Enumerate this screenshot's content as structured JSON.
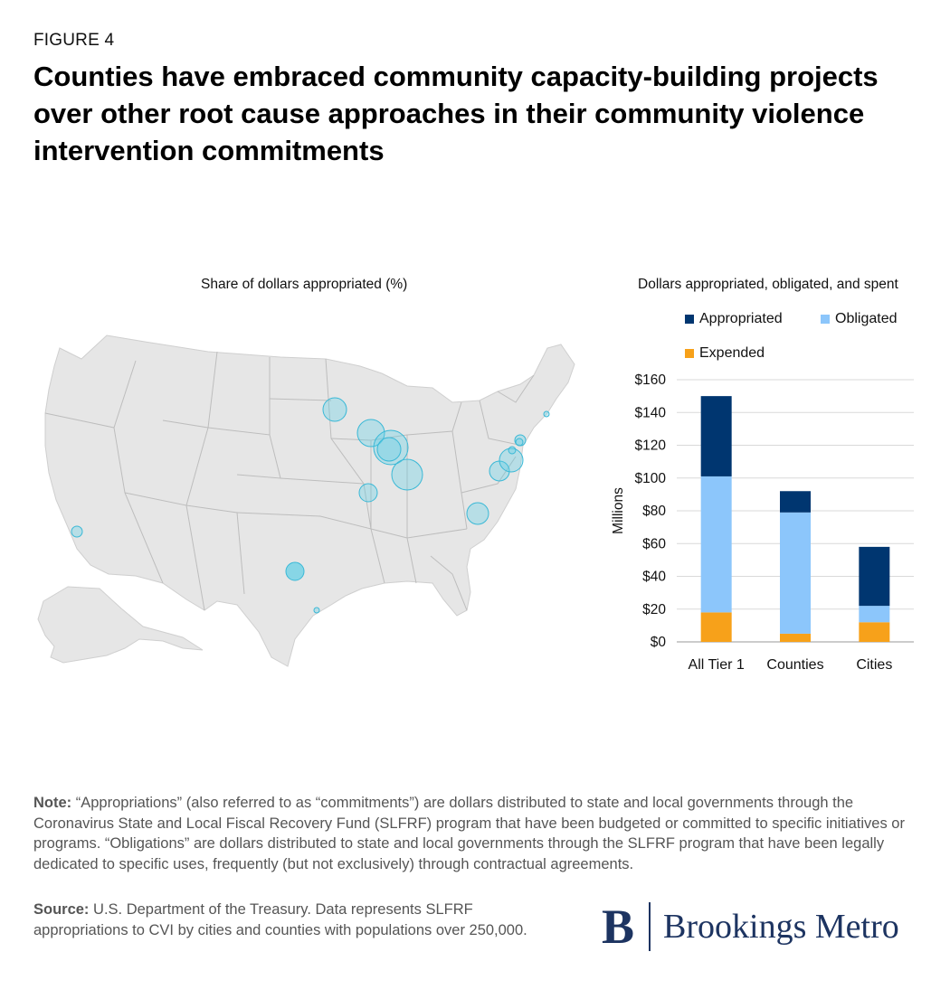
{
  "figure_label": "FIGURE 4",
  "title": "Counties have embraced community capacity-building projects over other root cause approaches in their community violence intervention commitments",
  "map": {
    "title": "Share of dollars appropriated (%)",
    "bubble_color": "#5ecfe6",
    "land_color": "#e6e6e6",
    "border_color": "#bdbdbd"
  },
  "chart_data": {
    "type": "bar",
    "stacked": true,
    "title": "Dollars appropriated, obligated, and spent",
    "ylabel": "Millions",
    "xlabel": "",
    "categories": [
      "All Tier 1",
      "Counties",
      "Cities"
    ],
    "series": [
      {
        "name": "Expended",
        "color": "#f7a11a",
        "values": [
          18,
          5,
          12
        ]
      },
      {
        "name": "Obligated",
        "color": "#8cc6fb",
        "values": [
          83,
          74,
          10
        ]
      },
      {
        "name": "Appropriated",
        "color": "#003670",
        "values": [
          49,
          13,
          36
        ]
      }
    ],
    "legend": [
      "Appropriated",
      "Obligated",
      "Expended"
    ],
    "ylim": [
      0,
      160
    ],
    "yticks": [
      0,
      20,
      40,
      60,
      80,
      100,
      120,
      140,
      160
    ],
    "ytick_labels": [
      "$0",
      "$20",
      "$40",
      "$60",
      "$80",
      "$100",
      "$120",
      "$140",
      "$160"
    ],
    "grid": true
  },
  "note_label": "Note:",
  "note_text": " “Appropriations” (also referred to as “commitments”) are dollars distributed to state and local governments through the Coronavirus State and Local Fiscal Recovery Fund (SLFRF) program that have been budgeted or committed to specific initiatives or programs. “Obligations” are dollars distributed to state and local governments through the SLFRF program that have been legally dedicated to specific uses, frequently (but not exclusively) through contractual agreements.",
  "source_label": "Source:",
  "source_text": " U.S. Department of the Treasury. Data represents SLFRF appropriations to CVI by cities and counties with populations over 250,000.",
  "brand": {
    "logo_letter": "B",
    "name": "Brookings Metro",
    "color": "#1d3461"
  }
}
